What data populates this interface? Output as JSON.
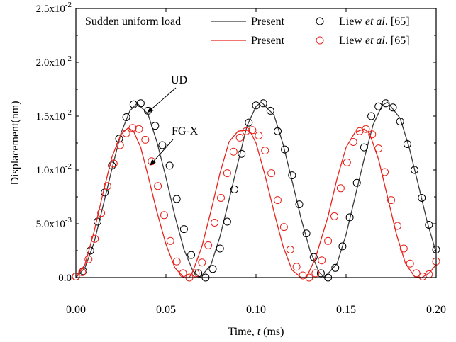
{
  "chart_data": {
    "type": "line",
    "title": "",
    "xlabel_main": "Time, ",
    "xlabel_var": "t",
    "xlabel_unit": " (ms)",
    "ylabel": "Displacement(nm)",
    "xlim": [
      0,
      0.2
    ],
    "ylim": [
      0,
      0.025
    ],
    "x_ticks": [
      0,
      0.05,
      0.1,
      0.15,
      0.2
    ],
    "x_tick_labels": [
      "0.00",
      "0.05",
      "0.10",
      "0.15",
      "0.20"
    ],
    "y_ticks": [
      0,
      0.005,
      0.01,
      0.015,
      0.02,
      0.025
    ],
    "y_tick_labels": [
      {
        "mant": "0.0",
        "exp": ""
      },
      {
        "mant": "5.0x10",
        "exp": "-3"
      },
      {
        "mant": "1.0x10",
        "exp": "-2"
      },
      {
        "mant": "1.5x10",
        "exp": "-2"
      },
      {
        "mant": "2.0x10",
        "exp": "-2"
      },
      {
        "mant": "2.5x10",
        "exp": "-2"
      }
    ],
    "grid": false,
    "legend": {
      "placement": "top",
      "title": "Sudden uniform load",
      "line_label": "Present",
      "marker_label_prefix": "Liew ",
      "marker_label_italic": "et al",
      "marker_label_suffix": ". [65]"
    },
    "series": [
      {
        "name": "Present",
        "style": "line",
        "color": "#3a3a3a",
        "x": [
          0,
          0.005,
          0.01,
          0.015,
          0.02,
          0.025,
          0.03,
          0.034,
          0.04,
          0.045,
          0.05,
          0.055,
          0.06,
          0.065,
          0.069,
          0.075,
          0.08,
          0.085,
          0.09,
          0.095,
          0.1,
          0.103,
          0.11,
          0.115,
          0.12,
          0.125,
          0.13,
          0.135,
          0.138,
          0.145,
          0.15,
          0.155,
          0.16,
          0.165,
          0.17,
          0.173,
          0.18,
          0.185,
          0.19,
          0.195,
          0.2
        ],
        "y": [
          0,
          0.0009,
          0.0032,
          0.0066,
          0.0101,
          0.0134,
          0.0155,
          0.0162,
          0.0152,
          0.0126,
          0.0093,
          0.0057,
          0.0026,
          0.0006,
          0,
          0.0012,
          0.0038,
          0.0072,
          0.0107,
          0.0141,
          0.0159,
          0.0163,
          0.0151,
          0.0124,
          0.009,
          0.0055,
          0.0025,
          0.0005,
          0,
          0.0013,
          0.004,
          0.0075,
          0.011,
          0.0142,
          0.016,
          0.0163,
          0.0148,
          0.0121,
          0.0087,
          0.0052,
          0.0023
        ]
      },
      {
        "name": "Liew et al. [65]",
        "style": "marker",
        "color": "#000000",
        "x": [
          0,
          0.004,
          0.008,
          0.012,
          0.016,
          0.02,
          0.024,
          0.028,
          0.032,
          0.036,
          0.04,
          0.044,
          0.048,
          0.052,
          0.056,
          0.06,
          0.064,
          0.068,
          0.072,
          0.076,
          0.08,
          0.084,
          0.088,
          0.092,
          0.096,
          0.1,
          0.104,
          0.108,
          0.112,
          0.116,
          0.12,
          0.124,
          0.128,
          0.132,
          0.136,
          0.14,
          0.144,
          0.148,
          0.152,
          0.156,
          0.16,
          0.164,
          0.168,
          0.172,
          0.176,
          0.18,
          0.184,
          0.188,
          0.192,
          0.196,
          0.2
        ],
        "y": [
          0.0001,
          0.0006,
          0.0025,
          0.0052,
          0.0079,
          0.0104,
          0.0129,
          0.0149,
          0.0161,
          0.0162,
          0.0155,
          0.0141,
          0.0123,
          0.0104,
          0.0073,
          0.0045,
          0.0021,
          0.0004,
          0,
          0.0008,
          0.0027,
          0.0052,
          0.0082,
          0.0115,
          0.0144,
          0.016,
          0.0162,
          0.0155,
          0.0136,
          0.0119,
          0.0095,
          0.0068,
          0.0041,
          0.0019,
          0.0004,
          0,
          0.0009,
          0.0029,
          0.0056,
          0.0088,
          0.0121,
          0.015,
          0.0159,
          0.0162,
          0.0158,
          0.0145,
          0.0124,
          0.01,
          0.0074,
          0.0049,
          0.0026
        ]
      },
      {
        "name": "Present",
        "style": "line",
        "color": "#e8221b",
        "x": [
          0,
          0.005,
          0.01,
          0.015,
          0.02,
          0.025,
          0.029,
          0.032,
          0.036,
          0.04,
          0.045,
          0.05,
          0.055,
          0.06,
          0.063,
          0.065,
          0.07,
          0.075,
          0.08,
          0.085,
          0.09,
          0.095,
          0.097,
          0.1,
          0.105,
          0.11,
          0.115,
          0.12,
          0.125,
          0.128,
          0.133,
          0.14,
          0.145,
          0.15,
          0.155,
          0.16,
          0.163,
          0.168,
          0.173,
          0.178,
          0.183,
          0.188,
          0.192,
          0.196,
          0.2
        ],
        "y": [
          0,
          0.0012,
          0.0042,
          0.0078,
          0.0112,
          0.0133,
          0.0139,
          0.0136,
          0.0121,
          0.0095,
          0.0061,
          0.0031,
          0.0009,
          0,
          0,
          0.0006,
          0.0029,
          0.0062,
          0.0097,
          0.0126,
          0.0136,
          0.0137,
          0.0135,
          0.0125,
          0.0095,
          0.0061,
          0.0029,
          0.0007,
          0,
          0,
          0.0018,
          0.0057,
          0.0092,
          0.0121,
          0.0135,
          0.0138,
          0.0134,
          0.011,
          0.0075,
          0.004,
          0.0013,
          0.0001,
          0,
          0.0004,
          0.0012
        ]
      },
      {
        "name": "Liew et al. [65]",
        "style": "marker",
        "color": "#e8221b",
        "x": [
          0,
          0.0035,
          0.007,
          0.0105,
          0.014,
          0.0175,
          0.021,
          0.0245,
          0.028,
          0.0315,
          0.035,
          0.0385,
          0.042,
          0.0455,
          0.049,
          0.0525,
          0.056,
          0.0595,
          0.063,
          0.0665,
          0.07,
          0.0735,
          0.077,
          0.0805,
          0.084,
          0.0875,
          0.091,
          0.0945,
          0.098,
          0.1015,
          0.105,
          0.1085,
          0.112,
          0.1155,
          0.119,
          0.1225,
          0.126,
          0.1295,
          0.133,
          0.1365,
          0.14,
          0.1435,
          0.147,
          0.1505,
          0.154,
          0.1575,
          0.161,
          0.1645,
          0.168,
          0.1715,
          0.175,
          0.1785,
          0.182,
          0.1855,
          0.189,
          0.1925,
          0.196,
          0.2
        ],
        "y": [
          0.0001,
          0.0005,
          0.0017,
          0.0036,
          0.006,
          0.0085,
          0.0106,
          0.0123,
          0.0134,
          0.0139,
          0.0138,
          0.0128,
          0.0108,
          0.0085,
          0.0058,
          0.0034,
          0.0015,
          0.0004,
          0,
          0.0004,
          0.0014,
          0.003,
          0.0051,
          0.0074,
          0.0097,
          0.0117,
          0.013,
          0.0136,
          0.0137,
          0.0132,
          0.0118,
          0.0097,
          0.0072,
          0.0047,
          0.0026,
          0.001,
          0.0002,
          0,
          0.0004,
          0.0016,
          0.0034,
          0.0057,
          0.0083,
          0.0107,
          0.0126,
          0.0136,
          0.0138,
          0.0133,
          0.012,
          0.0098,
          0.0072,
          0.0048,
          0.0027,
          0.0013,
          0.0004,
          0.0001,
          0.0003,
          0.0015
        ]
      }
    ],
    "annotations": [
      {
        "text": "UD",
        "target_x": 0.0395,
        "target_y": 0.0153
      },
      {
        "text": "FG-X",
        "target_x": 0.041,
        "target_y": 0.0104
      }
    ]
  }
}
